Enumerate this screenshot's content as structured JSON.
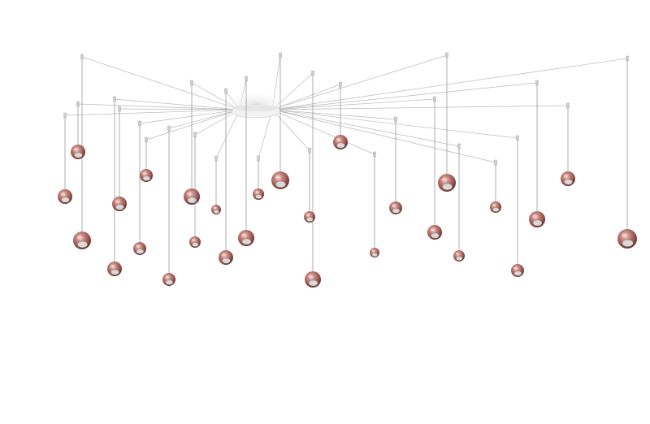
{
  "image": {
    "subject": "multi-pendant-chandelier",
    "colors": {
      "background": "#ffffff",
      "ball": "#b8706a",
      "ball_dark": "#6e3430",
      "ball_highlight": "#f1d4cf",
      "lens": "#d9d9d9",
      "cable": "#9a9a9a",
      "canopy": "#eeeeee"
    }
  }
}
